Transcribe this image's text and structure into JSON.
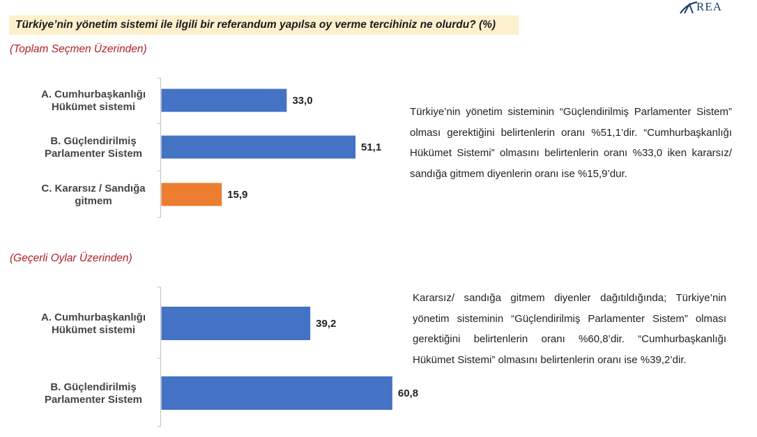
{
  "logo": {
    "text": "REA"
  },
  "question": "Türkiye’nin yönetim sistemi ile ilgili bir referandum yapılsa oy verme tercihiniz ne olurdu? (%)",
  "colors": {
    "primary_bar": "#4472c4",
    "highlight_bar": "#ed7d31",
    "subtitle": "#b0202a",
    "question_bg": "#fdf0cc"
  },
  "chart_data": [
    {
      "type": "bar",
      "orientation": "horizontal",
      "title": "(Toplam Seçmen Üzerinden)",
      "categories": [
        [
          "A. Cumhurbaşkanlığı",
          "Hükümet sistemi"
        ],
        [
          "B. Güçlendirilmiş",
          "Parlamenter Sistem"
        ],
        [
          "C. Kararsız / Sandığa",
          "gitmem"
        ]
      ],
      "values": [
        33.0,
        51.1,
        15.9
      ],
      "value_labels": [
        "33,0",
        "51,1",
        "15,9"
      ],
      "bar_colors": [
        "#4472c4",
        "#4472c4",
        "#ed7d31"
      ]
    },
    {
      "type": "bar",
      "orientation": "horizontal",
      "title": "(Geçerli Oylar Üzerinden)",
      "categories": [
        [
          "A. Cumhurbaşkanlığı",
          "Hükümet sistemi"
        ],
        [
          "B. Güçlendirilmiş",
          "Parlamenter Sistem"
        ]
      ],
      "values": [
        39.2,
        60.8
      ],
      "value_labels": [
        "39,2",
        "60,8"
      ],
      "bar_colors": [
        "#4472c4",
        "#4472c4"
      ]
    }
  ],
  "paragraphs": [
    "Türkiye’nin yönetim sisteminin “Güçlendirilmiş Parlamenter Sistem” olması gerektiğini belirtenlerin oranı %51,1’dir. “Cumhurbaşkanlığı Hükümet Sistemi” olmasını belirtenlerin oranı %33,0 iken kararsız/ sandığa gitmem diyenlerin oranı ise %15,9’dur.",
    "Kararsız/ sandığa gitmem diyenler dağıtıldığında; Türkiye’nin yönetim sisteminin “Güçlendirilmiş Parlamenter Sistem” olması gerektiğini belirtenlerin oranı %60,8’dir. “Cumhurbaşkanlığı Hükümet Sistemi” olmasını belirtenlerin oranı ise %39,2’dir."
  ]
}
